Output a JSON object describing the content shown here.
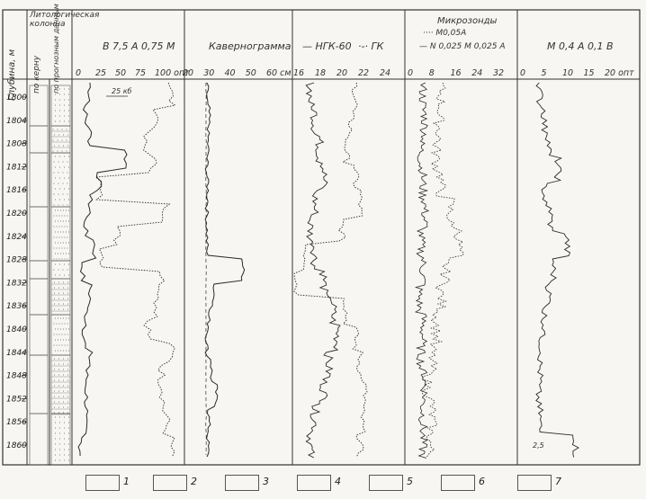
{
  "depth_header": "Глубина, м",
  "lith_header": "Литологическая колонна",
  "lith_sub1": "по керну",
  "lith_sub2": "по прогнозным данным",
  "depth_labels": [
    "1800",
    "1804",
    "1808",
    "1812",
    "1816",
    "1820",
    "1824",
    "1828",
    "1832",
    "1836",
    "1840",
    "1844",
    "1848",
    "1852",
    "1856",
    "1860"
  ],
  "track1": {
    "title": "В 7,5 А 0,75 М",
    "ticks": [
      "0",
      "25",
      "50",
      "75",
      "100 опт"
    ],
    "scale_note": "25 кб"
  },
  "track2": {
    "title": "Кавернограмма",
    "ticks": [
      "20",
      "30",
      "40",
      "50",
      "60 см"
    ]
  },
  "track3": {
    "title_a": "НГК-60",
    "title_b": "ГК",
    "ticks": [
      "16",
      "18",
      "20",
      "22",
      "24"
    ]
  },
  "track4": {
    "title": "Микрозонды",
    "sub1": "М0,05А",
    "sub2": "N 0,025 М 0,025 А",
    "ticks": [
      "0",
      "8",
      "16",
      "24",
      "32"
    ]
  },
  "track5": {
    "title": "М 0,4 А 0,1 В",
    "ticks": [
      "0",
      "5",
      "10",
      "15",
      "20 опт"
    ],
    "bottom_note": "2,5"
  },
  "legend": [
    "1",
    "2",
    "3",
    "4",
    "5",
    "6",
    "7"
  ],
  "colors": {
    "ink": "#2a2a2a",
    "paper": "#f7f6f2",
    "grid": "#444444"
  }
}
